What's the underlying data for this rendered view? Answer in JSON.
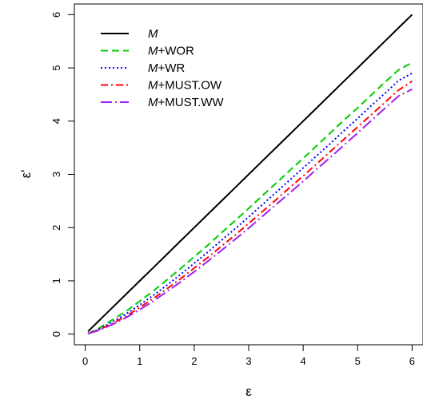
{
  "chart_data": {
    "type": "line",
    "xlabel": "ε",
    "ylabel": "ε'",
    "xlim": [
      -0.2,
      6.2
    ],
    "ylim": [
      -0.2,
      6.2
    ],
    "xticks": [
      0,
      1,
      2,
      3,
      4,
      5,
      6
    ],
    "yticks": [
      0,
      1,
      2,
      3,
      4,
      5,
      6
    ],
    "grid": false,
    "legend_position": "top-left",
    "x": [
      0.05,
      0.25,
      0.5,
      0.75,
      1,
      1.25,
      1.5,
      1.75,
      2,
      2.25,
      2.5,
      2.75,
      3,
      3.25,
      3.5,
      3.75,
      4,
      4.25,
      4.5,
      4.75,
      5,
      5.25,
      5.5,
      5.75,
      6
    ],
    "series": [
      {
        "prefix": "M",
        "suffix": "",
        "color": "#000000",
        "dash": "none",
        "values": [
          0.05,
          0.25,
          0.5,
          0.75,
          1.0,
          1.25,
          1.5,
          1.75,
          2.0,
          2.25,
          2.5,
          2.75,
          3.0,
          3.25,
          3.5,
          3.75,
          4.0,
          4.25,
          4.5,
          4.75,
          5.0,
          5.25,
          5.5,
          5.75,
          6.0
        ]
      },
      {
        "prefix": "M",
        "suffix": "+WOR",
        "color": "#00cc00",
        "dash": "9,5",
        "values": [
          0.01,
          0.11,
          0.27,
          0.43,
          0.62,
          0.81,
          1.02,
          1.23,
          1.45,
          1.67,
          1.9,
          2.13,
          2.36,
          2.6,
          2.83,
          3.07,
          3.3,
          3.54,
          3.78,
          4.02,
          4.25,
          4.49,
          4.73,
          4.96,
          5.1
        ]
      },
      {
        "prefix": "M",
        "suffix": "+WR",
        "color": "#0000ff",
        "dash": "2,3",
        "values": [
          0.01,
          0.09,
          0.23,
          0.38,
          0.55,
          0.73,
          0.92,
          1.12,
          1.33,
          1.54,
          1.76,
          1.98,
          2.2,
          2.43,
          2.66,
          2.89,
          3.12,
          3.35,
          3.58,
          3.82,
          4.05,
          4.29,
          4.52,
          4.76,
          4.9
        ]
      },
      {
        "prefix": "M",
        "suffix": "+MUST.OW",
        "color": "#ff0000",
        "dash": "9,4,2,4",
        "values": [
          0.01,
          0.08,
          0.2,
          0.34,
          0.5,
          0.67,
          0.85,
          1.04,
          1.24,
          1.44,
          1.65,
          1.86,
          2.08,
          2.3,
          2.52,
          2.75,
          2.97,
          3.2,
          3.43,
          3.66,
          3.89,
          4.12,
          4.35,
          4.58,
          4.75
        ]
      },
      {
        "prefix": "M",
        "suffix": "+MUST.WW",
        "color": "#a020f0",
        "dash": "14,4,2,4",
        "values": [
          0.01,
          0.07,
          0.18,
          0.31,
          0.46,
          0.62,
          0.8,
          0.98,
          1.17,
          1.37,
          1.57,
          1.78,
          1.99,
          2.21,
          2.43,
          2.65,
          2.87,
          3.1,
          3.32,
          3.55,
          3.78,
          4.01,
          4.24,
          4.47,
          4.6
        ]
      }
    ]
  }
}
